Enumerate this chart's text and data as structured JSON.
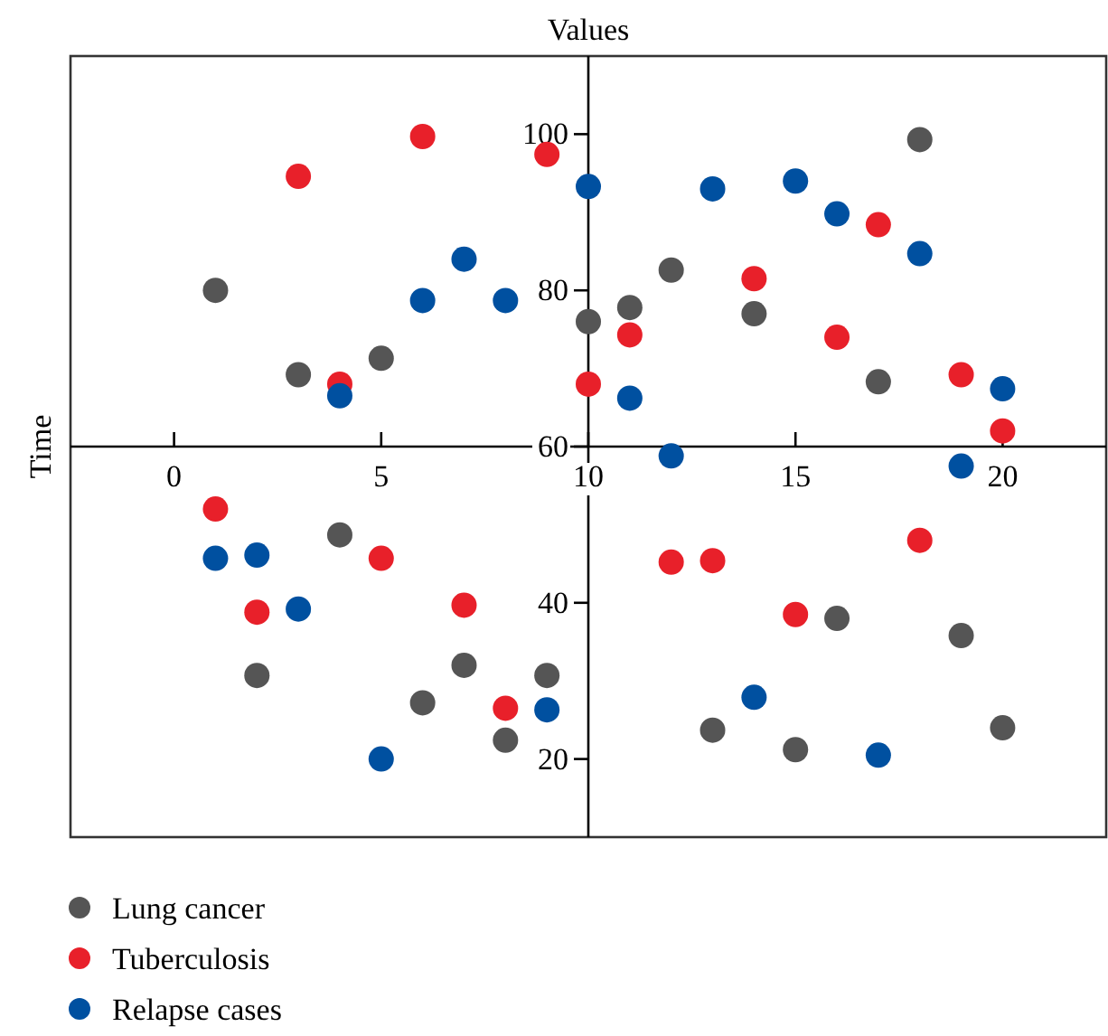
{
  "chart_data": {
    "type": "scatter",
    "xlabel": "Values",
    "ylabel": "Time",
    "x": [
      1,
      2,
      3,
      4,
      5,
      6,
      7,
      8,
      9,
      10,
      11,
      12,
      13,
      14,
      15,
      16,
      17,
      18,
      19,
      20
    ],
    "series": [
      {
        "name": "Lung cancer",
        "color": "#555555",
        "values": [
          80,
          30.7,
          69.2,
          48.7,
          71.3,
          27.2,
          32,
          22.4,
          30.7,
          76,
          77.8,
          82.6,
          23.7,
          77,
          21.2,
          38,
          68.3,
          99.3,
          35.8,
          24
        ]
      },
      {
        "name": "Tuberculosis",
        "color": "#e8202a",
        "values": [
          52,
          38.8,
          94.6,
          68,
          45.7,
          99.7,
          39.7,
          26.5,
          97.4,
          68,
          74.3,
          45.2,
          45.4,
          81.5,
          38.5,
          74,
          88.4,
          48,
          69.2,
          62
        ]
      },
      {
        "name": "Relapse cases",
        "color": "#0050a0",
        "values": [
          45.7,
          46.1,
          39.2,
          66.5,
          20,
          78.7,
          84,
          78.7,
          26.3,
          93.3,
          66.2,
          58.8,
          93,
          27.9,
          94,
          89.8,
          20.5,
          84.7,
          57.5,
          67.4
        ]
      }
    ],
    "xlim": [
      -2.5,
      22.5
    ],
    "ylim": [
      10,
      110
    ],
    "xticks": [
      0,
      5,
      10,
      15,
      20
    ],
    "yticks": [
      20,
      40,
      60,
      80,
      100
    ],
    "marker": "circle",
    "legend": "bottom left",
    "grid": false
  }
}
